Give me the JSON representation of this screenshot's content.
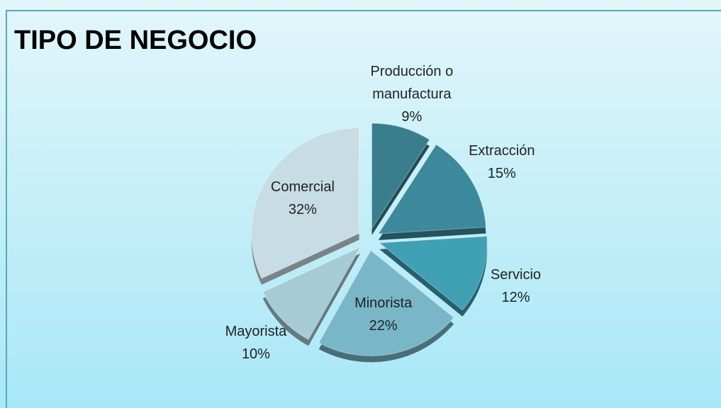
{
  "chart_data": {
    "type": "pie",
    "title": "TIPO DE NEGOCIO",
    "categories": [
      "Producción o manufactura",
      "Extracción",
      "Servicio",
      "Minorista",
      "Mayorista",
      "Comercial"
    ],
    "values": [
      9,
      15,
      12,
      22,
      10,
      32
    ],
    "value_labels": [
      "9%",
      "15%",
      "12%",
      "22%",
      "10%",
      "32%"
    ],
    "colors": [
      "#3a7e8e",
      "#3c899b",
      "#40a0b4",
      "#79b7c8",
      "#a7cbd6",
      "#c8dce3"
    ]
  }
}
